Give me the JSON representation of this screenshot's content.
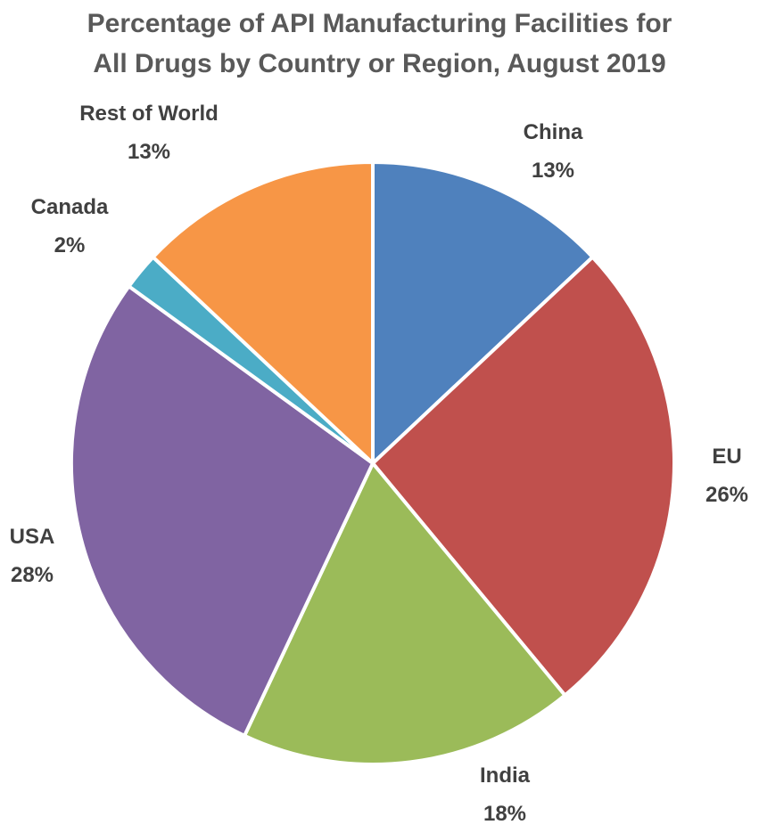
{
  "chart_data": {
    "type": "pie",
    "title": "Percentage of API Manufacturing Facilities for All Drugs by Country or Region, August 2019",
    "title_lines": [
      "Percentage of API Manufacturing Facilities for",
      "All Drugs by Country or Region, August 2019"
    ],
    "slices": [
      {
        "name": "China",
        "value": 13,
        "label": "13%",
        "color": "#4F81BD"
      },
      {
        "name": "EU",
        "value": 26,
        "label": "26%",
        "color": "#C0504D"
      },
      {
        "name": "India",
        "value": 18,
        "label": "18%",
        "color": "#9BBB59"
      },
      {
        "name": "USA",
        "value": 28,
        "label": "28%",
        "color": "#8064A2"
      },
      {
        "name": "Canada",
        "value": 2,
        "label": "2%",
        "color": "#4BACC6"
      },
      {
        "name": "Rest of World",
        "value": 13,
        "label": "13%",
        "color": "#F79646"
      }
    ],
    "legend": "none",
    "data_labels": "outside"
  }
}
